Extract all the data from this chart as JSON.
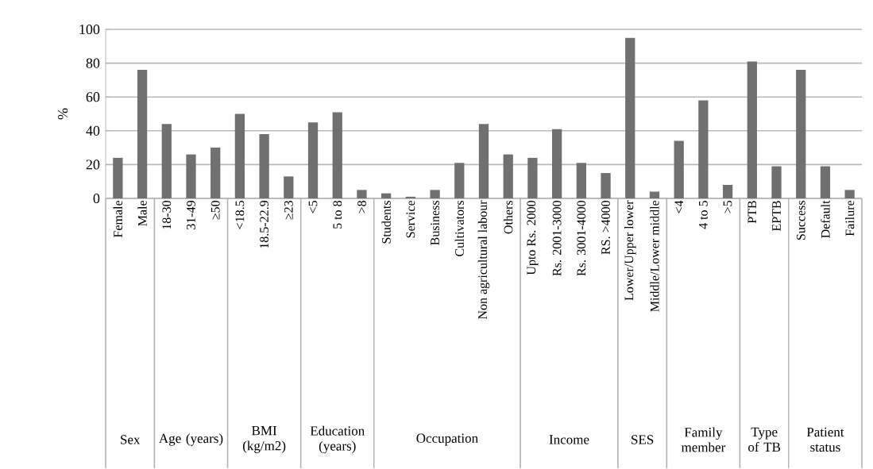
{
  "chart_data": {
    "type": "bar",
    "ylabel": "%",
    "categories": [
      "Female",
      "Male",
      "18-30",
      "31-49",
      "≥50",
      "<18.5",
      "18.5-22.9",
      "≥23",
      "<5",
      "5 to 8",
      ">8",
      "Students",
      "Service",
      "Business",
      "Cultivators",
      "Non agricultural labour",
      "Others",
      "Upto Rs. 2000",
      "Rs. 2001-3000",
      "Rs. 3001-4000",
      "RS. >4000",
      "Lower/Upper lower",
      "Middle/Lower middle",
      "<4",
      "4 to 5",
      ">5",
      "PTB",
      "EPTB",
      "Success",
      "Default",
      "Failure"
    ],
    "values": [
      24,
      76,
      44,
      26,
      30,
      50,
      38,
      13,
      45,
      51,
      5,
      3,
      1,
      5,
      21,
      44,
      26,
      24,
      41,
      21,
      15,
      95,
      4,
      34,
      58,
      8,
      81,
      19,
      76,
      19,
      5
    ],
    "color": "#707070",
    "ylim": [
      0,
      100
    ],
    "yticks": [
      0,
      20,
      40,
      60,
      80,
      100
    ],
    "grid": "y",
    "annotations": [
      "Sex",
      "Age (years)",
      "BMI (kg/m2)",
      "Education (years)",
      "Occupation",
      "Income",
      "SES",
      "Family member",
      "Type of TB",
      "Patient status"
    ]
  }
}
